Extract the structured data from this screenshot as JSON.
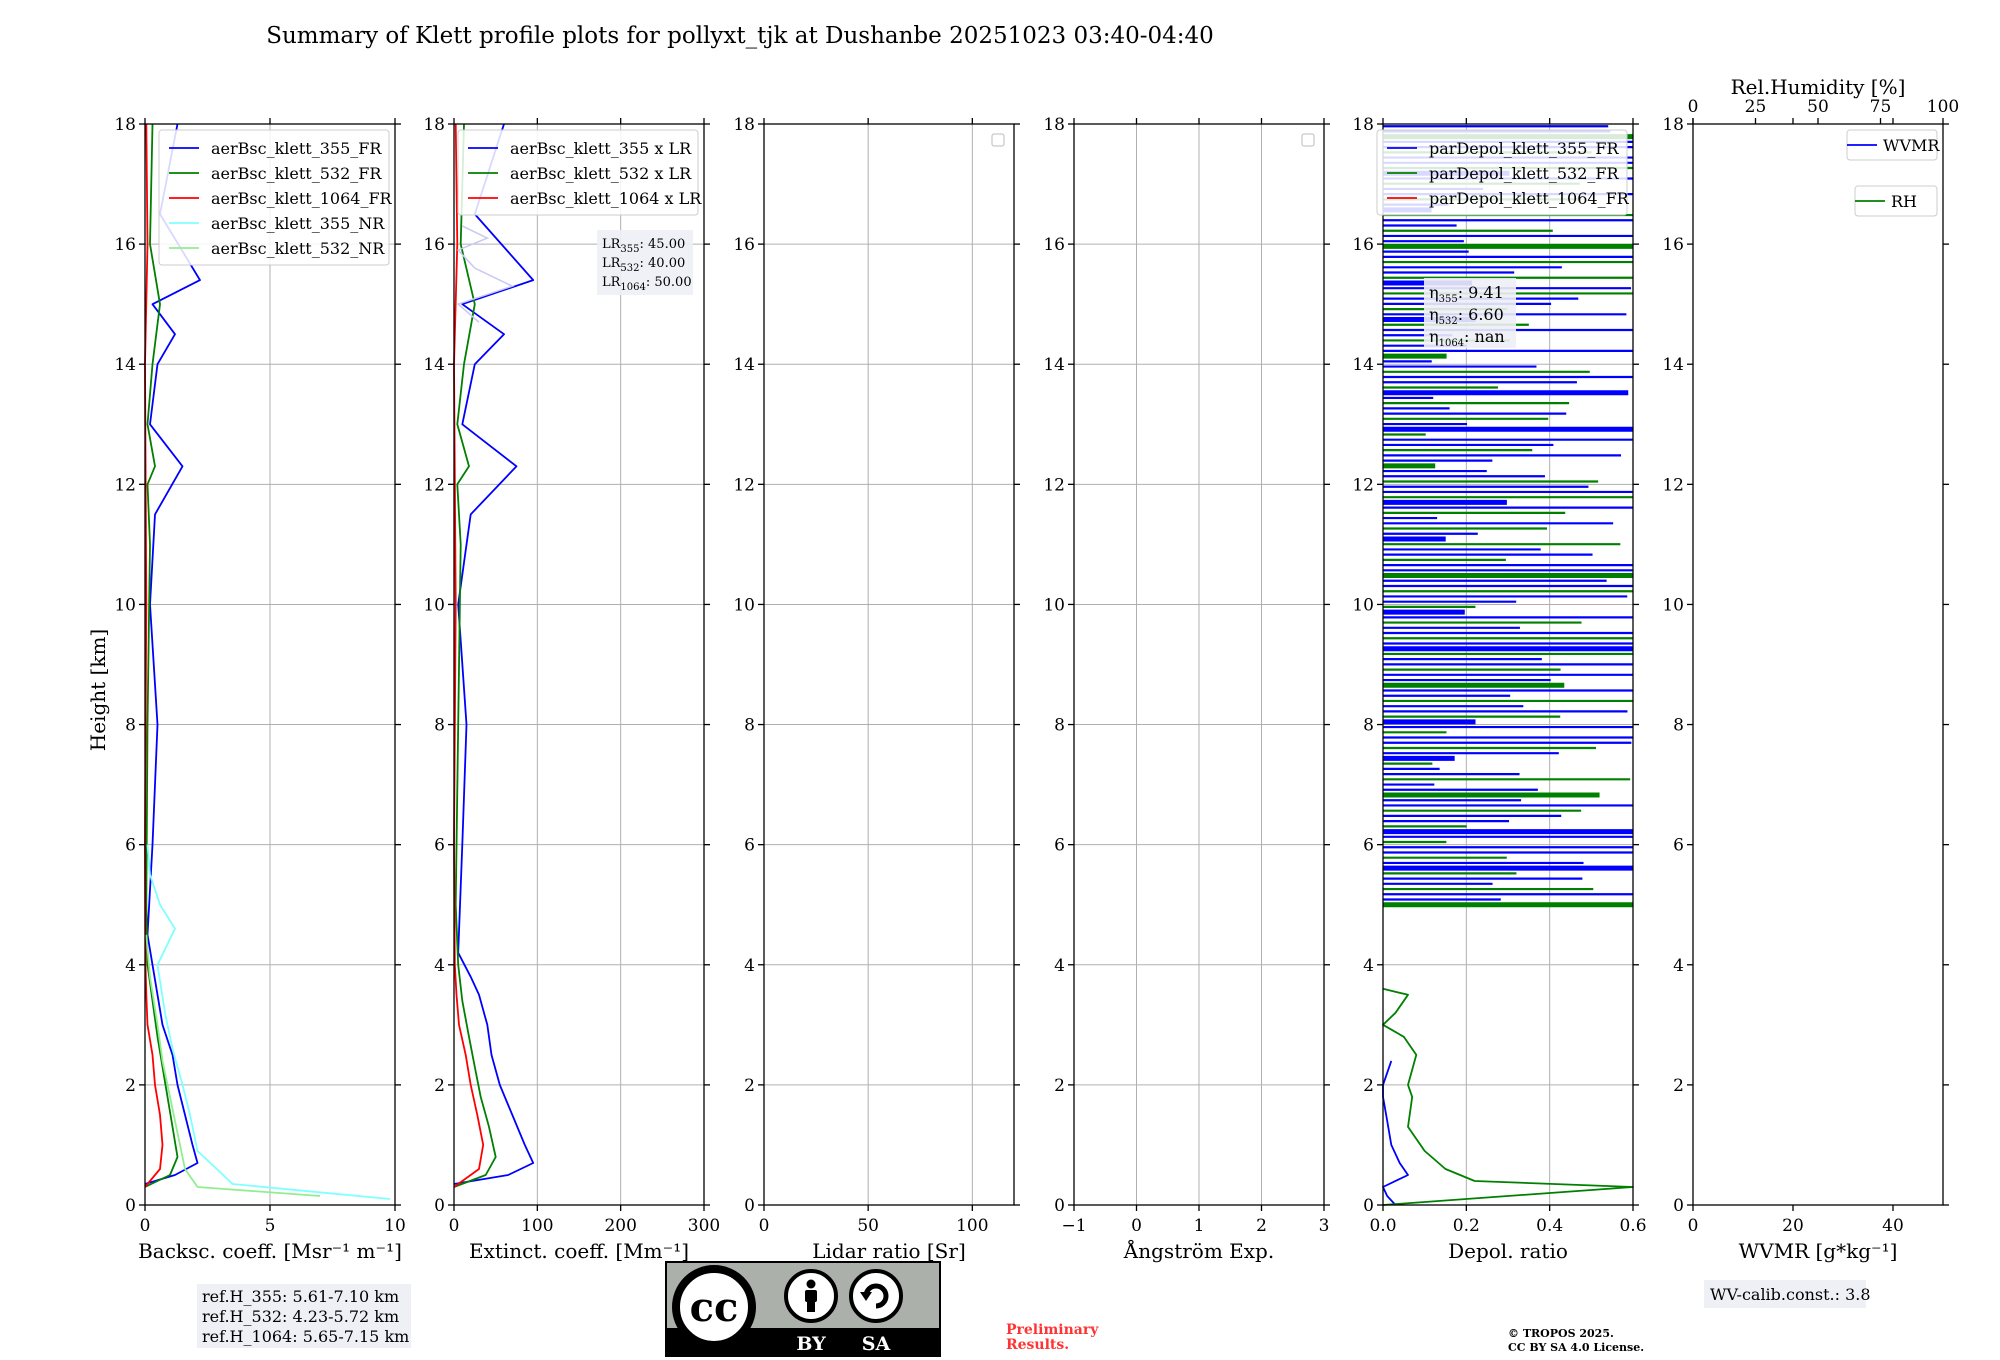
{
  "figure": {
    "title": "Summary of Klett profile plots for pollyxt_tjk at Dushanbe 20251023 03:40-04:40",
    "ylabel": "Height [km]",
    "preliminary": [
      "Preliminary",
      "Results."
    ],
    "copyright": [
      "© TROPOS 2025.",
      "CC BY SA 4.0 License."
    ],
    "license_badge": {
      "top": "cc",
      "by": "BY",
      "sa": "SA"
    }
  },
  "colors": {
    "blue": "#0000ff",
    "green": "#008000",
    "red": "#ff0000",
    "cyan": "#7fffff",
    "lightgreen": "#90ee90",
    "lavender": "#c8c8f0",
    "annotation_bg": "#eef0f5"
  },
  "chart_data": [
    {
      "type": "line",
      "xlabel": "Backsc. coeff. [Msr⁻¹ m⁻¹]",
      "xlim": [
        0,
        10
      ],
      "xticks": [
        0,
        5,
        10
      ],
      "ylim": [
        0,
        18
      ],
      "yticks": [
        0,
        2,
        4,
        6,
        8,
        10,
        12,
        14,
        16,
        18
      ],
      "grid": true,
      "legend_position": "top-right",
      "annotation": [
        "ref.H_355: 5.61-7.10 km",
        "ref.H_532: 4.23-5.72 km",
        "ref.H_1064: 5.65-7.15 km"
      ],
      "series": [
        {
          "name": "aerBsc_klett_355_FR",
          "color": "#0000ff",
          "x": [
            0,
            1.2,
            2.1,
            1.9,
            1.6,
            1.3,
            1.1,
            0.7,
            0.5,
            0.3,
            0.1,
            0.3,
            0.5,
            0.2,
            0.4,
            1.5,
            0.2,
            0.5,
            1.2,
            0.3,
            2.2,
            0.6,
            1.3
          ],
          "y": [
            0.35,
            0.5,
            0.7,
            1.0,
            1.5,
            2.0,
            2.5,
            3.0,
            3.5,
            4.0,
            4.5,
            6.0,
            8.0,
            10.0,
            11.5,
            12.3,
            13.0,
            14.0,
            14.5,
            15.0,
            15.4,
            16.5,
            18.0
          ]
        },
        {
          "name": "aerBsc_klett_532_FR",
          "color": "#008000",
          "x": [
            0,
            1.0,
            1.3,
            1.1,
            0.9,
            0.7,
            0.5,
            0.3,
            0.1,
            0.05,
            0.1,
            0.2,
            0.1,
            0.4,
            0.1,
            0.3,
            0.6,
            0.2,
            0.3
          ],
          "y": [
            0.3,
            0.5,
            0.8,
            1.3,
            1.8,
            2.3,
            2.8,
            3.4,
            4.0,
            5.0,
            8.0,
            11.0,
            12.0,
            12.3,
            13.0,
            14.0,
            15.0,
            16.0,
            18.0
          ]
        },
        {
          "name": "aerBsc_klett_1064_FR",
          "color": "#ff0000",
          "x": [
            0,
            0.6,
            0.7,
            0.6,
            0.4,
            0.3,
            0.1,
            0.05,
            0.02,
            0,
            0.05,
            0,
            0.1,
            0.05
          ],
          "y": [
            0.3,
            0.6,
            1.0,
            1.5,
            2.0,
            2.5,
            3.0,
            3.5,
            4.0,
            6.0,
            10.0,
            14.0,
            16.0,
            18.0
          ]
        },
        {
          "name": "aerBsc_klett_355_NR",
          "color": "#7fffff",
          "x": [
            9.8,
            3.5,
            3.0,
            2.1,
            1.8,
            1.5,
            1.1,
            0.8,
            0.5,
            1.2,
            0.6,
            0.2,
            0.1
          ],
          "y": [
            0.1,
            0.35,
            0.55,
            0.9,
            1.5,
            2.0,
            2.6,
            3.2,
            4.0,
            4.6,
            5.0,
            5.5,
            6.0
          ]
        },
        {
          "name": "aerBsc_klett_532_NR",
          "color": "#90ee90",
          "x": [
            7.0,
            2.1,
            1.6,
            1.3,
            1.0,
            0.7,
            0.5,
            0.2,
            0.05
          ],
          "y": [
            0.15,
            0.3,
            0.6,
            1.2,
            1.8,
            2.4,
            3.0,
            3.8,
            4.5
          ]
        }
      ]
    },
    {
      "type": "line",
      "xlabel": "Extinct. coeff. [Mm⁻¹]",
      "xlim": [
        0,
        300
      ],
      "xticks": [
        0,
        100,
        200,
        300
      ],
      "ylim": [
        0,
        18
      ],
      "yticks": [
        0,
        2,
        4,
        6,
        8,
        10,
        12,
        14,
        16,
        18
      ],
      "grid": true,
      "legend_position": "top-right",
      "annotation": [
        {
          "base": "LR",
          "sub": "355",
          "value": ": 45.00"
        },
        {
          "base": "LR",
          "sub": "532",
          "value": ": 40.00"
        },
        {
          "base": "LR",
          "sub": "1064",
          "value": ": 50.00"
        }
      ],
      "series": [
        {
          "name": "aerBsc_klett_355 x LR",
          "color": "#0000ff",
          "x": [
            0,
            65,
            95,
            85,
            70,
            55,
            45,
            40,
            30,
            20,
            5,
            10,
            15,
            5,
            20,
            75,
            10,
            25,
            60,
            10,
            95,
            25,
            60
          ],
          "y": [
            0.35,
            0.5,
            0.7,
            1.0,
            1.5,
            2.0,
            2.5,
            3.0,
            3.5,
            3.8,
            4.2,
            6.0,
            8.0,
            10.0,
            11.5,
            12.3,
            13.0,
            14.0,
            14.5,
            15.0,
            15.4,
            16.5,
            18.0
          ]
        },
        {
          "name": "aerBsc_klett_532 x LR",
          "color": "#008000",
          "x": [
            0,
            38,
            50,
            42,
            32,
            25,
            18,
            10,
            5,
            2,
            5,
            8,
            4,
            18,
            4,
            12,
            25,
            8,
            12
          ],
          "y": [
            0.3,
            0.5,
            0.8,
            1.3,
            1.8,
            2.3,
            2.8,
            3.4,
            4.0,
            5.0,
            8.0,
            11.0,
            12.0,
            12.3,
            13.0,
            14.0,
            15.0,
            16.0,
            18.0
          ]
        },
        {
          "name": "aerBsc_klett_1064 x LR",
          "color": "#ff0000",
          "x": [
            0,
            30,
            35,
            28,
            20,
            14,
            6,
            3,
            1,
            0,
            2,
            0,
            4,
            2
          ],
          "y": [
            0.3,
            0.6,
            1.0,
            1.5,
            2.0,
            2.5,
            3.0,
            3.5,
            4.0,
            6.0,
            10.0,
            14.0,
            16.0,
            18.0
          ]
        }
      ]
    },
    {
      "type": "line",
      "xlabel": "Lidar ratio [Sr]",
      "xlim": [
        0,
        120
      ],
      "xticks": [
        0,
        50,
        100
      ],
      "ylim": [
        0,
        18
      ],
      "yticks": [
        0,
        2,
        4,
        6,
        8,
        10,
        12,
        14,
        16,
        18
      ],
      "grid": true,
      "legend_position": "top-right",
      "series": []
    },
    {
      "type": "line",
      "xlabel": "Ångström Exp.",
      "xlim": [
        -1,
        3
      ],
      "xticks": [
        -1,
        0,
        1,
        2,
        3
      ],
      "ylim": [
        0,
        18
      ],
      "yticks": [
        0,
        2,
        4,
        6,
        8,
        10,
        12,
        14,
        16,
        18
      ],
      "grid": true,
      "legend_position": "top-right",
      "series": []
    },
    {
      "type": "line",
      "xlabel": "Depol. ratio",
      "xlim": [
        0,
        0.6
      ],
      "xticks": [
        0.0,
        0.2,
        0.4,
        0.6
      ],
      "ylim": [
        0,
        18
      ],
      "yticks": [
        0,
        2,
        4,
        6,
        8,
        10,
        12,
        14,
        16,
        18
      ],
      "grid": true,
      "legend_position": "top-right",
      "annotation": [
        {
          "base": "η",
          "sub": "355",
          "value": ": 9.41"
        },
        {
          "base": "η",
          "sub": "532",
          "value": ": 6.60"
        },
        {
          "base": "η",
          "sub": "1064",
          "value": ": nan"
        }
      ],
      "series": [
        {
          "name": "parDepol_klett_355_FR",
          "color": "#0000ff",
          "x": [
            0.03,
            0.01,
            0.0,
            0.06,
            0.04,
            0.02,
            0.01,
            0.0,
            0.0,
            0.02
          ],
          "y": [
            0.0,
            0.15,
            0.3,
            0.5,
            0.7,
            1.0,
            1.4,
            1.8,
            2.0,
            2.4
          ]
        },
        {
          "name": "parDepol_klett_532_FR",
          "color": "#008000",
          "x": [
            0.0,
            0.6,
            0.22,
            0.15,
            0.1,
            0.06,
            0.07,
            0.06,
            0.08,
            0.05,
            0.0,
            0.03,
            0.06,
            0.0
          ],
          "y": [
            0.0,
            0.3,
            0.4,
            0.6,
            0.9,
            1.3,
            1.8,
            2.0,
            2.5,
            2.8,
            3.0,
            3.2,
            3.5,
            3.6
          ]
        },
        {
          "name": "parDepol_klett_1064_FR",
          "color": "#ff0000",
          "x": [],
          "y": []
        }
      ]
    },
    {
      "type": "line",
      "xlabel": "WVMR [g*kg⁻¹]",
      "xlim": [
        0,
        50
      ],
      "xticks": [
        0,
        20,
        40
      ],
      "x2label": "Rel.Humidity [%]",
      "x2lim": [
        0,
        100
      ],
      "x2ticks": [
        0,
        25,
        50,
        75,
        100
      ],
      "ylim": [
        0,
        18
      ],
      "yticks": [
        0,
        2,
        4,
        6,
        8,
        10,
        12,
        14,
        16,
        18
      ],
      "grid": false,
      "legend_position": "top-right",
      "annotation": [
        "WV-calib.const.: 3.8"
      ],
      "series": [
        {
          "name": "WVMR",
          "color": "#0000ff",
          "x": [],
          "y": []
        },
        {
          "name": "RH",
          "color": "#008000",
          "x": [],
          "y": []
        }
      ]
    }
  ]
}
